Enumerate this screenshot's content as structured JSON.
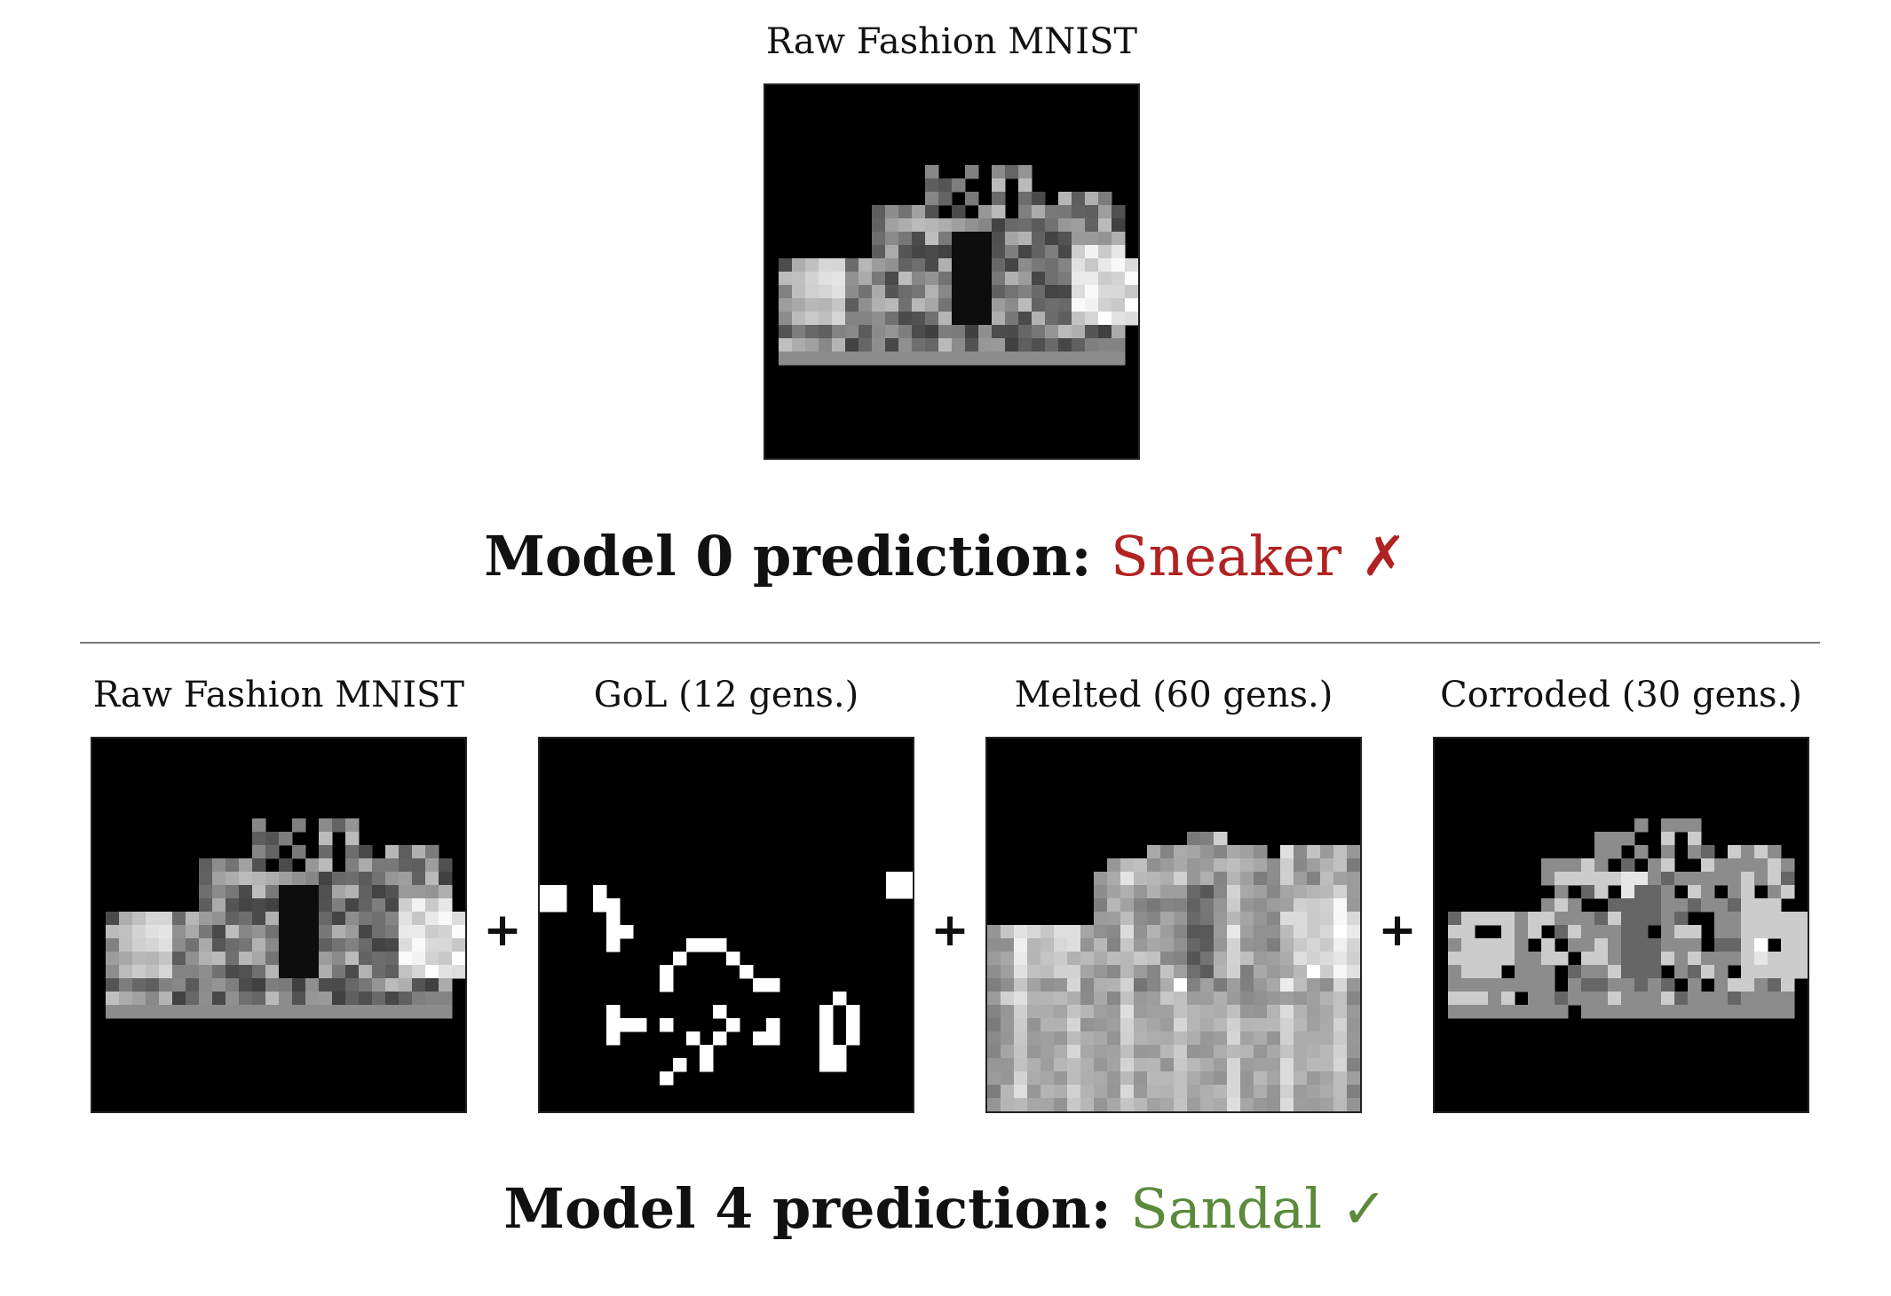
{
  "top": {
    "caption": "Raw Fashion MNIST",
    "prediction_prefix": "Model 0 prediction:",
    "prediction_label": "Sneaker",
    "prediction_mark": "✗",
    "prediction_color": "#b22222"
  },
  "bottom": {
    "panels": [
      {
        "caption": "Raw Fashion MNIST",
        "image": "raw"
      },
      {
        "caption": "GoL (12 gens.)",
        "image": "gol"
      },
      {
        "caption": "Melted (60 gens.)",
        "image": "melted"
      },
      {
        "caption": "Corroded (30 gens.)",
        "image": "corroded"
      }
    ],
    "plus": "+",
    "prediction_prefix": "Model 4 prediction:",
    "prediction_label": "Sandal",
    "prediction_mark": "✓",
    "prediction_color": "#5a8a3a"
  }
}
